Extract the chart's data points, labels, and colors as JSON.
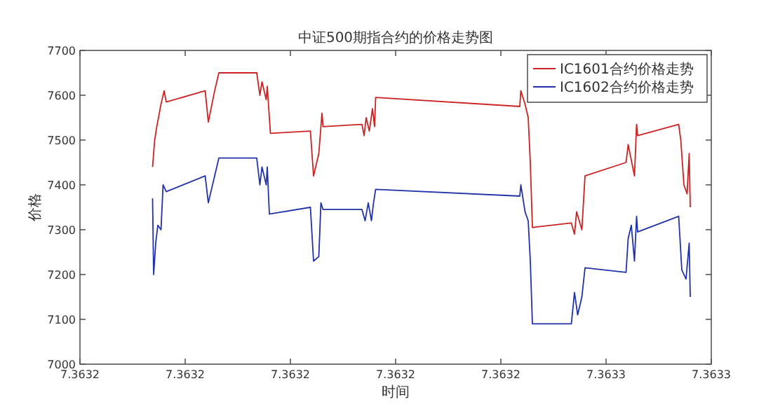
{
  "chart_data": {
    "type": "line",
    "title": "中证500期指合约的价格走势图",
    "xlabel": "时间",
    "ylabel": "价格",
    "xlim": [
      7.3632,
      7.36326
    ],
    "xticks": [
      {
        "value": 7.3632,
        "label": "7.3632"
      },
      {
        "value": 7.36321,
        "label": "7.3632"
      },
      {
        "value": 7.36322,
        "label": "7.3632"
      },
      {
        "value": 7.36323,
        "label": "7.3632"
      },
      {
        "value": 7.36324,
        "label": "7.3632"
      },
      {
        "value": 7.36325,
        "label": "7.3633"
      },
      {
        "value": 7.36326,
        "label": "7.3633"
      }
    ],
    "ylim": [
      7000,
      7700
    ],
    "yticks": [
      7000,
      7100,
      7200,
      7300,
      7400,
      7500,
      7600,
      7700
    ],
    "legend": "top right",
    "series": [
      {
        "name": "IC1601合约价格走势",
        "color": "#cc2222",
        "x": [
          7.3632069,
          7.3632071,
          7.3632073,
          7.3632077,
          7.363208,
          7.3632082,
          7.3632119,
          7.3632122,
          7.3632128,
          7.3632132,
          7.3632168,
          7.3632171,
          7.3632173,
          7.3632177,
          7.3632178,
          7.3632181,
          7.3632219,
          7.3632222,
          7.3632227,
          7.363223,
          7.3632231,
          7.3632268,
          7.363227,
          7.3632272,
          7.3632275,
          7.3632278,
          7.363228,
          7.3632281,
          7.3632418,
          7.3632419,
          7.3632423,
          7.3632426,
          7.3632428,
          7.363243,
          7.3632467,
          7.363247,
          7.3632472,
          7.3632477,
          7.363248,
          7.3632519,
          7.3632521,
          7.3632527,
          7.3632529,
          7.363253,
          7.3632569,
          7.3632571,
          7.3632574,
          7.3632577,
          7.3632579,
          7.363258
        ],
        "values": [
          7440,
          7500,
          7530,
          7580,
          7610,
          7585,
          7610,
          7540,
          7610,
          7650,
          7650,
          7600,
          7630,
          7590,
          7620,
          7515,
          7520,
          7420,
          7470,
          7560,
          7530,
          7535,
          7510,
          7550,
          7520,
          7570,
          7530,
          7595,
          7575,
          7610,
          7580,
          7550,
          7450,
          7305,
          7315,
          7290,
          7340,
          7300,
          7420,
          7450,
          7490,
          7420,
          7535,
          7510,
          7535,
          7500,
          7400,
          7380,
          7470,
          7350
        ]
      },
      {
        "name": "IC1602合约价格走势",
        "color": "#2233aa",
        "x": [
          7.3632069,
          7.363207,
          7.3632072,
          7.3632074,
          7.3632077,
          7.3632079,
          7.3632082,
          7.3632119,
          7.3632122,
          7.3632128,
          7.3632132,
          7.3632168,
          7.3632171,
          7.3632173,
          7.3632177,
          7.3632178,
          7.363218,
          7.3632219,
          7.3632222,
          7.3632227,
          7.3632229,
          7.3632231,
          7.3632268,
          7.3632271,
          7.3632274,
          7.3632277,
          7.3632279,
          7.3632281,
          7.3632418,
          7.3632419,
          7.3632423,
          7.3632426,
          7.3632428,
          7.363243,
          7.3632467,
          7.363247,
          7.3632473,
          7.3632477,
          7.363248,
          7.3632519,
          7.3632521,
          7.3632524,
          7.3632527,
          7.3632529,
          7.363253,
          7.3632569,
          7.3632572,
          7.3632576,
          7.3632579,
          7.363258
        ],
        "values": [
          7370,
          7200,
          7270,
          7310,
          7300,
          7400,
          7385,
          7420,
          7360,
          7420,
          7460,
          7460,
          7400,
          7440,
          7400,
          7440,
          7335,
          7350,
          7230,
          7240,
          7360,
          7345,
          7345,
          7320,
          7360,
          7320,
          7360,
          7390,
          7375,
          7400,
          7340,
          7320,
          7230,
          7090,
          7090,
          7160,
          7110,
          7150,
          7215,
          7205,
          7280,
          7310,
          7230,
          7330,
          7295,
          7330,
          7210,
          7190,
          7270,
          7150
        ]
      }
    ]
  }
}
